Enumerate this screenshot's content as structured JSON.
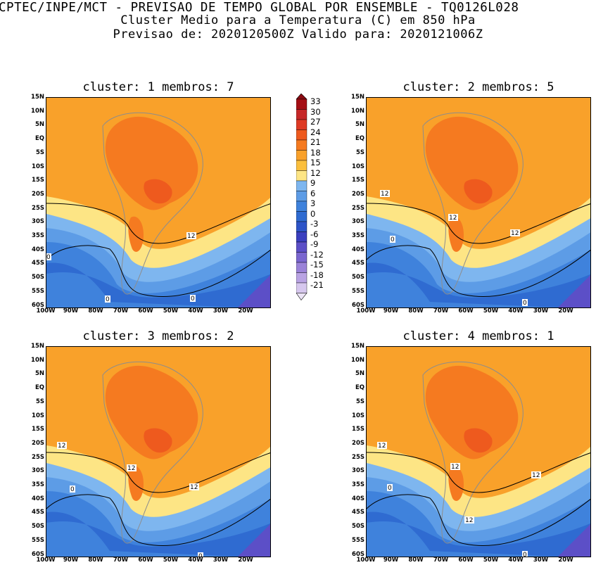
{
  "header": {
    "line1": "CPTEC/INPE/MCT - PREVISAO DE TEMPO GLOBAL POR ENSEMBLE - TQ0126L028",
    "line2": "Cluster Medio para a Temperatura (C) em 850 hPa",
    "line3": "Previsao de: 2020120500Z   Valido para: 2020121006Z"
  },
  "panels": [
    {
      "title": "cluster: 1  membros: 7",
      "contour_labels": [
        "12",
        "0",
        "0",
        "0"
      ]
    },
    {
      "title": "cluster: 2  membros: 5",
      "contour_labels": [
        "12",
        "12",
        "12",
        "0",
        "0"
      ]
    },
    {
      "title": "cluster: 3  membros: 2",
      "contour_labels": [
        "12",
        "12",
        "12",
        "0",
        "0"
      ]
    },
    {
      "title": "cluster: 4  membros: 1",
      "contour_labels": [
        "12",
        "12",
        "12",
        "12",
        "0",
        "0"
      ]
    }
  ],
  "lat_labels": [
    "15N",
    "10N",
    "5N",
    "EQ",
    "5S",
    "10S",
    "15S",
    "20S",
    "25S",
    "30S",
    "35S",
    "40S",
    "45S",
    "50S",
    "55S",
    "60S"
  ],
  "lon_labels": [
    "100W",
    "90W",
    "80W",
    "70W",
    "60W",
    "50W",
    "40W",
    "30W",
    "20W"
  ],
  "colorbar": {
    "labels": [
      "33",
      "30",
      "27",
      "24",
      "21",
      "18",
      "15",
      "12",
      "9",
      "6",
      "3",
      "0",
      "-3",
      "-6",
      "-9",
      "-12",
      "-15",
      "-18",
      "-21"
    ],
    "colors": [
      "#a50f15",
      "#c62828",
      "#de3a24",
      "#ee5a1e",
      "#f57a20",
      "#f9a12a",
      "#fbbf3c",
      "#fde585",
      "#7eb6ef",
      "#5d9ce6",
      "#3f82dc",
      "#2f6bd1",
      "#2d54c8",
      "#3a3fbf",
      "#5c4fc7",
      "#7a66cf",
      "#9a82d8",
      "#b9a3e3",
      "#d6c7ee"
    ]
  }
}
